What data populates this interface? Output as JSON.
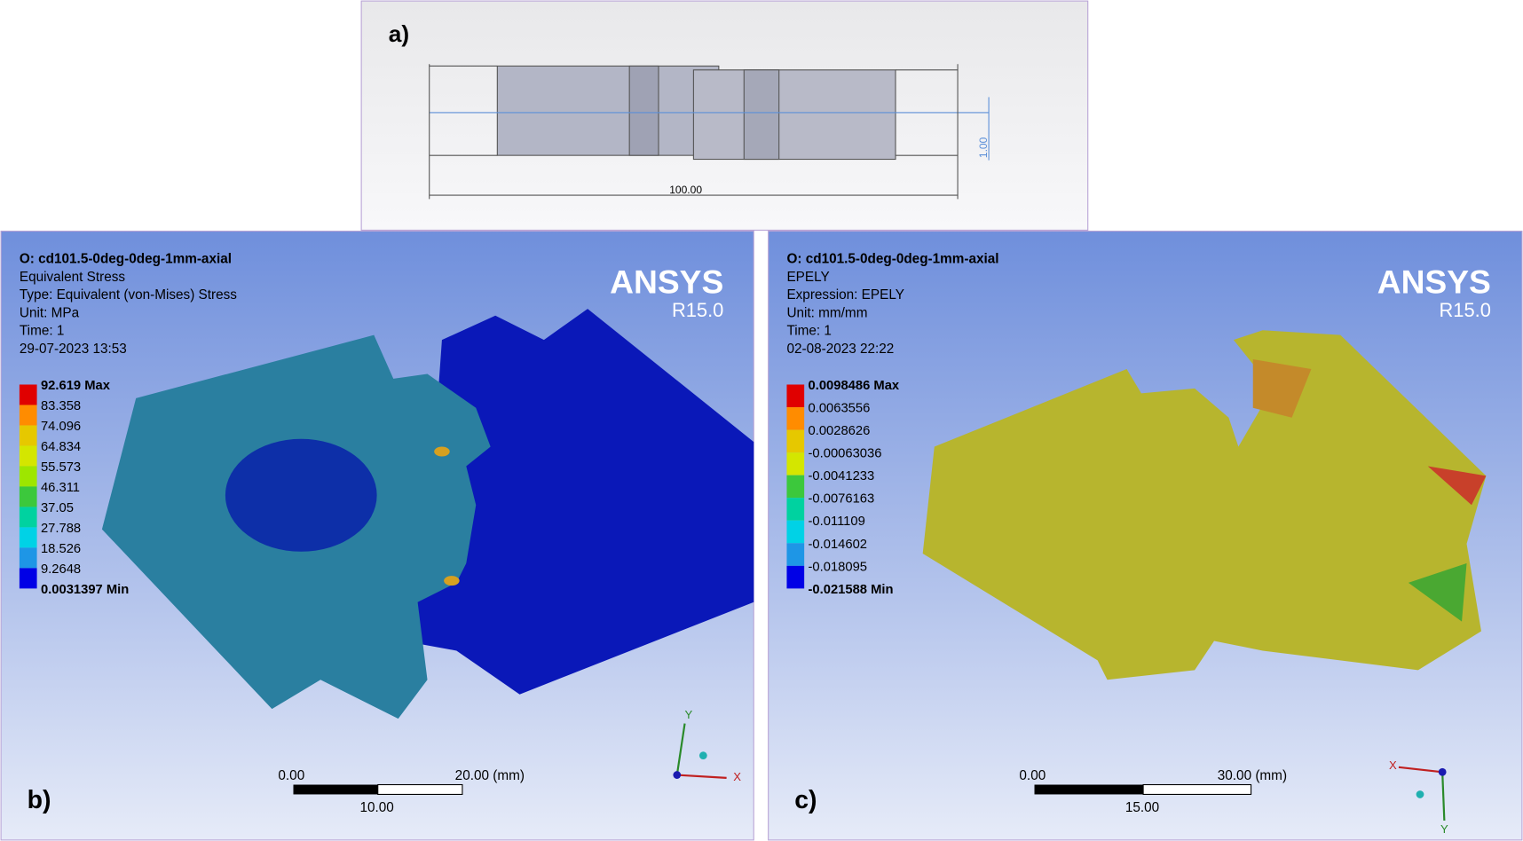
{
  "panel_a": {
    "label": "a)",
    "length_dim": "100.00",
    "thickness_dim": "1.00"
  },
  "panel_b": {
    "label": "b)",
    "header": [
      "O: cd101.5-0deg-0deg-1mm-axial",
      "Equivalent Stress",
      "Type: Equivalent (von-Mises) Stress",
      "Unit: MPa",
      "Time: 1",
      "29-07-2023 13:53"
    ],
    "brand": "ANSYS",
    "version": "R15.0",
    "legend": [
      "92.619 Max",
      "83.358",
      "74.096",
      "64.834",
      "55.573",
      "46.311",
      "37.05",
      "27.788",
      "18.526",
      "9.2648",
      "0.0031397 Min"
    ],
    "scale": {
      "start": "0.00",
      "end": "20.00 (mm)",
      "mid": "10.00"
    },
    "axes": {
      "y": "Y",
      "x": "X"
    }
  },
  "panel_c": {
    "label": "c)",
    "header": [
      "O: cd101.5-0deg-0deg-1mm-axial",
      "EPELY",
      "Expression: EPELY",
      "Unit: mm/mm",
      "Time: 1",
      "02-08-2023 22:22"
    ],
    "brand": "ANSYS",
    "version": "R15.0",
    "legend": [
      "0.0098486 Max",
      "0.0063556",
      "0.0028626",
      "-0.00063036",
      "-0.0041233",
      "-0.0076163",
      "-0.011109",
      "-0.014602",
      "-0.018095",
      "-0.021588 Min"
    ],
    "scale": {
      "start": "0.00",
      "end": "30.00 (mm)",
      "mid": "15.00"
    },
    "axes": {
      "x": "X",
      "y": "Y"
    }
  }
}
